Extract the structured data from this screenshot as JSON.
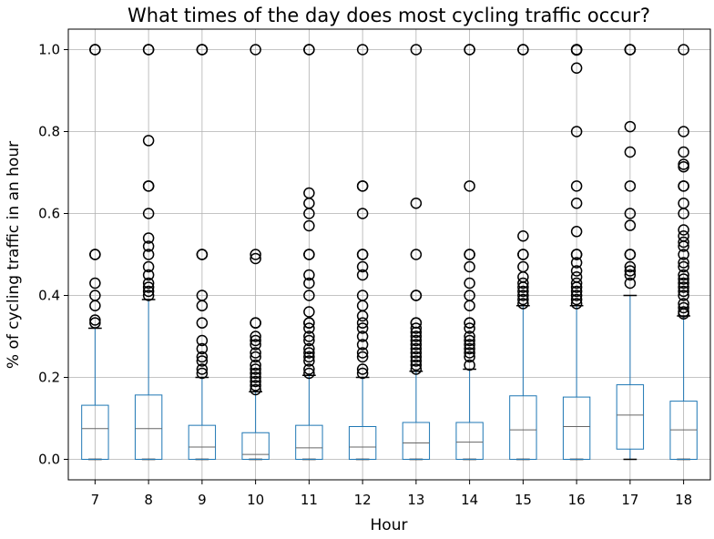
{
  "chart_data": {
    "type": "boxplot",
    "title": "What times of the day does most cycling traffic occur?",
    "xlabel": "Hour",
    "ylabel": "% of cycling traffic in an hour",
    "ylim": [
      -0.05,
      1.05
    ],
    "grid": true,
    "y_ticks": [
      "0.0",
      "0.2",
      "0.4",
      "0.6",
      "0.8",
      "1.0"
    ],
    "categories": [
      "7",
      "8",
      "9",
      "10",
      "11",
      "12",
      "13",
      "14",
      "15",
      "16",
      "17",
      "18"
    ],
    "colors": {
      "box": "#1f77b4",
      "median": "#666666",
      "outlier": "#000000",
      "grid": "#b0b0b0",
      "frame": "#000000"
    },
    "boxes": [
      {
        "hour": "7",
        "whisker_low": 0.0,
        "q1": 0.0,
        "median": 0.075,
        "q3": 0.132,
        "whisker_high": 0.32,
        "outliers": [
          0.333,
          0.34,
          0.375,
          0.4,
          0.43,
          0.5,
          0.5,
          1.0,
          1.0
        ]
      },
      {
        "hour": "8",
        "whisker_low": 0.0,
        "q1": 0.0,
        "median": 0.075,
        "q3": 0.157,
        "whisker_high": 0.39,
        "outliers": [
          0.4,
          0.41,
          0.42,
          0.43,
          0.45,
          0.47,
          0.5,
          0.52,
          0.54,
          0.6,
          0.667,
          0.667,
          0.778,
          1.0,
          1.0
        ]
      },
      {
        "hour": "9",
        "whisker_low": 0.0,
        "q1": 0.0,
        "median": 0.03,
        "q3": 0.083,
        "whisker_high": 0.2,
        "outliers": [
          0.21,
          0.22,
          0.24,
          0.25,
          0.27,
          0.29,
          0.333,
          0.375,
          0.4,
          0.5,
          0.5,
          1.0,
          1.0
        ]
      },
      {
        "hour": "10",
        "whisker_low": 0.0,
        "q1": 0.0,
        "median": 0.012,
        "q3": 0.065,
        "whisker_high": 0.165,
        "outliers": [
          0.17,
          0.18,
          0.19,
          0.2,
          0.21,
          0.22,
          0.23,
          0.25,
          0.26,
          0.28,
          0.29,
          0.3,
          0.333,
          0.333,
          0.49,
          0.5,
          1.0
        ]
      },
      {
        "hour": "11",
        "whisker_low": 0.0,
        "q1": 0.0,
        "median": 0.028,
        "q3": 0.083,
        "whisker_high": 0.205,
        "outliers": [
          0.21,
          0.22,
          0.24,
          0.25,
          0.26,
          0.27,
          0.29,
          0.3,
          0.32,
          0.333,
          0.333,
          0.36,
          0.4,
          0.43,
          0.45,
          0.5,
          0.5,
          0.57,
          0.6,
          0.625,
          0.65,
          1.0,
          1.0
        ]
      },
      {
        "hour": "12",
        "whisker_low": 0.0,
        "q1": 0.0,
        "median": 0.03,
        "q3": 0.08,
        "whisker_high": 0.2,
        "outliers": [
          0.21,
          0.22,
          0.25,
          0.26,
          0.28,
          0.3,
          0.32,
          0.333,
          0.35,
          0.375,
          0.4,
          0.45,
          0.47,
          0.5,
          0.5,
          0.6,
          0.667,
          0.667,
          1.0
        ]
      },
      {
        "hour": "13",
        "whisker_low": 0.0,
        "q1": 0.0,
        "median": 0.04,
        "q3": 0.09,
        "whisker_high": 0.215,
        "outliers": [
          0.22,
          0.23,
          0.24,
          0.25,
          0.26,
          0.27,
          0.28,
          0.29,
          0.3,
          0.31,
          0.32,
          0.333,
          0.333,
          0.4,
          0.4,
          0.5,
          0.625,
          1.0
        ]
      },
      {
        "hour": "14",
        "whisker_low": 0.0,
        "q1": 0.0,
        "median": 0.042,
        "q3": 0.09,
        "whisker_high": 0.22,
        "outliers": [
          0.23,
          0.25,
          0.26,
          0.27,
          0.28,
          0.29,
          0.3,
          0.32,
          0.333,
          0.333,
          0.375,
          0.4,
          0.43,
          0.47,
          0.5,
          0.5,
          0.667,
          1.0,
          1.0
        ]
      },
      {
        "hour": "15",
        "whisker_low": 0.0,
        "q1": 0.0,
        "median": 0.072,
        "q3": 0.155,
        "whisker_high": 0.375,
        "outliers": [
          0.38,
          0.39,
          0.4,
          0.41,
          0.42,
          0.43,
          0.445,
          0.47,
          0.5,
          0.5,
          0.545,
          1.0,
          1.0
        ]
      },
      {
        "hour": "16",
        "whisker_low": 0.0,
        "q1": 0.0,
        "median": 0.08,
        "q3": 0.152,
        "whisker_high": 0.375,
        "outliers": [
          0.38,
          0.39,
          0.4,
          0.41,
          0.42,
          0.43,
          0.445,
          0.46,
          0.48,
          0.5,
          0.5,
          0.556,
          0.625,
          0.667,
          0.8,
          0.955,
          0.999,
          1.0,
          1.0
        ]
      },
      {
        "hour": "17",
        "whisker_low": 0.0,
        "q1": 0.025,
        "median": 0.108,
        "q3": 0.182,
        "whisker_high": 0.4,
        "outliers": [
          0.43,
          0.45,
          0.46,
          0.47,
          0.5,
          0.5,
          0.571,
          0.6,
          0.667,
          0.75,
          0.812,
          1.0,
          1.0,
          1.0
        ]
      },
      {
        "hour": "18",
        "whisker_low": 0.0,
        "q1": 0.0,
        "median": 0.072,
        "q3": 0.142,
        "whisker_high": 0.35,
        "outliers": [
          0.355,
          0.36,
          0.37,
          0.38,
          0.4,
          0.41,
          0.42,
          0.43,
          0.44,
          0.45,
          0.47,
          0.48,
          0.5,
          0.52,
          0.53,
          0.545,
          0.56,
          0.6,
          0.625,
          0.667,
          0.667,
          0.714,
          0.72,
          0.75,
          0.8,
          1.0
        ]
      }
    ]
  }
}
